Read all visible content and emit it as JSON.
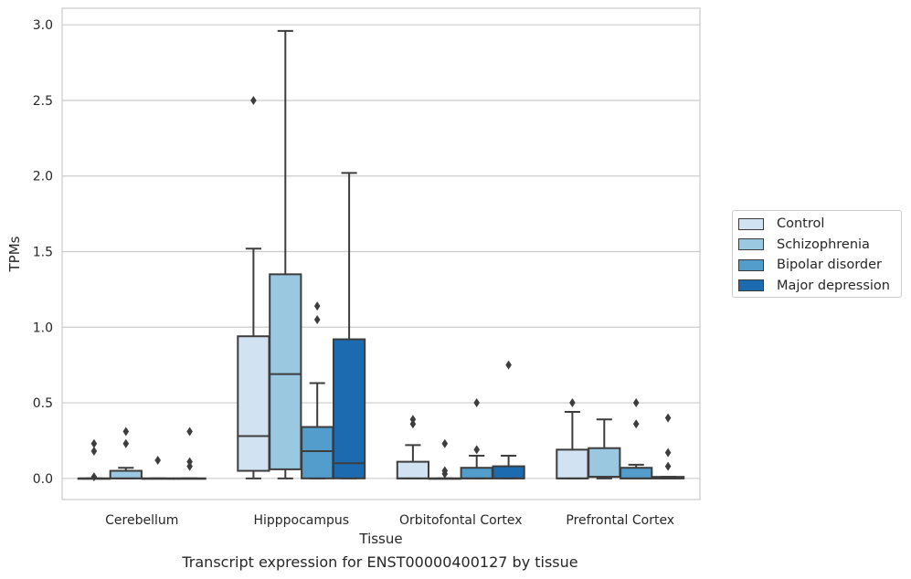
{
  "chart_data": {
    "type": "box",
    "caption": "Transcript expression for ENST00000400127 by tissue",
    "xlabel": "Tissue",
    "ylabel": "TPMs",
    "ylim": [
      -0.14,
      3.11
    ],
    "yticks": [
      "0.0",
      "0.5",
      "1.0",
      "1.5",
      "2.0",
      "2.5",
      "3.0"
    ],
    "grid": true,
    "legend_position": "right",
    "categories": [
      "Cerebellum",
      "Hipppocampus",
      "Orbitofontal Cortex",
      "Prefrontal Cortex"
    ],
    "series": [
      {
        "name": "Control",
        "color": "#d1e2f2",
        "boxes": [
          {
            "q1": 0,
            "median": 0,
            "q3": 0,
            "whislo": 0,
            "whishi": 0,
            "fliers": [
              0.01,
              0.18,
              0.23
            ]
          },
          {
            "q1": 0.05,
            "median": 0.28,
            "q3": 0.94,
            "whislo": 0,
            "whishi": 1.52,
            "fliers": [
              2.5
            ]
          },
          {
            "q1": 0,
            "median": 0,
            "q3": 0.11,
            "whislo": 0,
            "whishi": 0.22,
            "fliers": [
              0.36,
              0.39
            ]
          },
          {
            "q1": 0,
            "median": 0,
            "q3": 0.19,
            "whislo": 0,
            "whishi": 0.44,
            "fliers": [
              0.5
            ]
          }
        ]
      },
      {
        "name": "Schizophrenia",
        "color": "#9ac8e0",
        "boxes": [
          {
            "q1": 0,
            "median": 0,
            "q3": 0.05,
            "whislo": 0,
            "whishi": 0.07,
            "fliers": [
              0.23,
              0.31
            ]
          },
          {
            "q1": 0.06,
            "median": 0.69,
            "q3": 1.35,
            "whislo": 0,
            "whishi": 2.96,
            "fliers": []
          },
          {
            "q1": 0,
            "median": 0,
            "q3": 0,
            "whislo": 0,
            "whishi": 0,
            "fliers": [
              0.03,
              0.05,
              0.23
            ]
          },
          {
            "q1": 0.01,
            "median": 0.01,
            "q3": 0.2,
            "whislo": 0,
            "whishi": 0.39,
            "fliers": []
          }
        ]
      },
      {
        "name": "Bipolar disorder",
        "color": "#529dcc",
        "boxes": [
          {
            "q1": 0,
            "median": 0,
            "q3": 0,
            "whislo": 0,
            "whishi": 0,
            "fliers": [
              0.12
            ]
          },
          {
            "q1": 0,
            "median": 0.18,
            "q3": 0.34,
            "whislo": 0,
            "whishi": 0.63,
            "fliers": [
              1.05,
              1.14
            ]
          },
          {
            "q1": 0,
            "median": 0,
            "q3": 0.07,
            "whislo": 0,
            "whishi": 0.15,
            "fliers": [
              0.19,
              0.5
            ]
          },
          {
            "q1": 0,
            "median": 0,
            "q3": 0.07,
            "whislo": 0,
            "whishi": 0.09,
            "fliers": [
              0.36,
              0.5
            ]
          }
        ]
      },
      {
        "name": "Major depression",
        "color": "#1c6aaf",
        "boxes": [
          {
            "q1": 0,
            "median": 0,
            "q3": 0,
            "whislo": 0,
            "whishi": 0,
            "fliers": [
              0.08,
              0.11,
              0.31
            ]
          },
          {
            "q1": 0,
            "median": 0.1,
            "q3": 0.92,
            "whislo": 0,
            "whishi": 2.02,
            "fliers": []
          },
          {
            "q1": 0,
            "median": 0,
            "q3": 0.08,
            "whislo": 0,
            "whishi": 0.15,
            "fliers": [
              0.75
            ]
          },
          {
            "q1": 0,
            "median": 0,
            "q3": 0.01,
            "whislo": 0,
            "whishi": 0.01,
            "fliers": [
              0.08,
              0.17,
              0.4
            ]
          }
        ]
      }
    ]
  }
}
